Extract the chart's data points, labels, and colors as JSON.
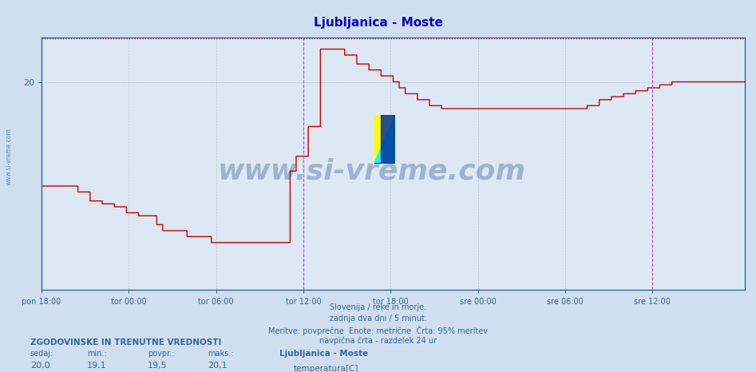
{
  "title": "Ljubljanica - Moste",
  "title_color": "#0000cc",
  "background_color": "#d0dff0",
  "plot_bg_color": "#dce8f4",
  "line_color": "#cc0000",
  "line_width": 1.0,
  "y_min": 13.0,
  "y_max": 21.5,
  "yticks": [
    20
  ],
  "xtick_labels": [
    "pon 18:00",
    "tor 00:00",
    "tor 06:00",
    "tor 12:00",
    "tor 18:00",
    "sre 00:00",
    "sre 06:00",
    "sre 12:00"
  ],
  "xtick_positions": [
    0,
    72,
    144,
    216,
    288,
    360,
    432,
    504
  ],
  "total_points": 577,
  "vertical_lines_magenta": [
    216,
    504
  ],
  "vertical_line_color": "#cc44cc",
  "grid_color": "#aabbcc",
  "text_color": "#336699",
  "footer_lines": [
    "Slovenija / reke in morje.",
    "zadnja dva dni / 5 minut.",
    "Meritve: povprečne  Enote: metrične  Črta: 95% meritev",
    "navpična črta - razdelek 24 ur"
  ],
  "stats_label": "ZGODOVINSKE IN TRENUTNE VREDNOSTI",
  "stats_cols": [
    "sedaj:",
    "min.:",
    "povpr.:",
    "maks.:"
  ],
  "stats_vals": [
    "20,0",
    "19,1",
    "19,5",
    "20,1"
  ],
  "legend_name": "Ljubljanica - Moste",
  "legend_param": "temperatura[C]",
  "legend_color": "#cc0000",
  "watermark_text": "www.si-vreme.com",
  "watermark_color": "#1a3a6b",
  "watermark_alpha": 0.3,
  "sidebar_text": "www.si-vreme.com",
  "sidebar_color": "#336699",
  "temperature_data": [
    16.5,
    16.5,
    16.5,
    16.5,
    16.5,
    16.5,
    16.5,
    16.5,
    16.5,
    16.5,
    16.5,
    16.5,
    16.5,
    16.5,
    16.5,
    16.5,
    16.5,
    16.5,
    16.5,
    16.5,
    16.5,
    16.5,
    16.5,
    16.5,
    16.5,
    16.5,
    16.5,
    16.5,
    16.5,
    16.5,
    16.3,
    16.3,
    16.3,
    16.3,
    16.3,
    16.3,
    16.3,
    16.3,
    16.3,
    16.3,
    16.0,
    16.0,
    16.0,
    16.0,
    16.0,
    16.0,
    16.0,
    16.0,
    16.0,
    16.0,
    15.9,
    15.9,
    15.9,
    15.9,
    15.9,
    15.9,
    15.9,
    15.9,
    15.9,
    15.9,
    15.8,
    15.8,
    15.8,
    15.8,
    15.8,
    15.8,
    15.8,
    15.8,
    15.8,
    15.8,
    15.6,
    15.6,
    15.6,
    15.6,
    15.6,
    15.6,
    15.6,
    15.6,
    15.6,
    15.6,
    15.5,
    15.5,
    15.5,
    15.5,
    15.5,
    15.5,
    15.5,
    15.5,
    15.5,
    15.5,
    15.5,
    15.5,
    15.5,
    15.5,
    15.5,
    15.2,
    15.2,
    15.2,
    15.2,
    15.2,
    15.0,
    15.0,
    15.0,
    15.0,
    15.0,
    15.0,
    15.0,
    15.0,
    15.0,
    15.0,
    15.0,
    15.0,
    15.0,
    15.0,
    15.0,
    15.0,
    15.0,
    15.0,
    15.0,
    15.0,
    14.8,
    14.8,
    14.8,
    14.8,
    14.8,
    14.8,
    14.8,
    14.8,
    14.8,
    14.8,
    14.8,
    14.8,
    14.8,
    14.8,
    14.8,
    14.8,
    14.8,
    14.8,
    14.8,
    14.8,
    14.6,
    14.6,
    14.6,
    14.6,
    14.6,
    14.6,
    14.6,
    14.6,
    14.6,
    14.6,
    14.6,
    14.6,
    14.6,
    14.6,
    14.6,
    14.6,
    14.6,
    14.6,
    14.6,
    14.6,
    14.6,
    14.6,
    14.6,
    14.6,
    14.6,
    14.6,
    14.6,
    14.6,
    14.6,
    14.6,
    14.6,
    14.6,
    14.6,
    14.6,
    14.6,
    14.6,
    14.6,
    14.6,
    14.6,
    14.6,
    14.6,
    14.6,
    14.6,
    14.6,
    14.6,
    14.6,
    14.6,
    14.6,
    14.6,
    14.6,
    14.6,
    14.6,
    14.6,
    14.6,
    14.6,
    14.6,
    14.6,
    14.6,
    14.6,
    14.6,
    14.6,
    14.6,
    14.6,
    14.6,
    14.6,
    17.0,
    17.0,
    17.0,
    17.0,
    17.0,
    17.5,
    17.5,
    17.5,
    17.5,
    17.5,
    17.5,
    17.5,
    17.5,
    17.5,
    17.5,
    18.5,
    18.5,
    18.5,
    18.5,
    18.5,
    18.5,
    18.5,
    18.5,
    18.5,
    18.5,
    21.1,
    21.1,
    21.1,
    21.1,
    21.1,
    21.1,
    21.1,
    21.1,
    21.1,
    21.1,
    21.1,
    21.1,
    21.1,
    21.1,
    21.1,
    21.1,
    21.1,
    21.1,
    21.1,
    21.1,
    20.9,
    20.9,
    20.9,
    20.9,
    20.9,
    20.9,
    20.9,
    20.9,
    20.9,
    20.9,
    20.6,
    20.6,
    20.6,
    20.6,
    20.6,
    20.6,
    20.6,
    20.6,
    20.6,
    20.6,
    20.4,
    20.4,
    20.4,
    20.4,
    20.4,
    20.4,
    20.4,
    20.4,
    20.4,
    20.4,
    20.2,
    20.2,
    20.2,
    20.2,
    20.2,
    20.2,
    20.2,
    20.2,
    20.2,
    20.2,
    20.0,
    20.0,
    20.0,
    20.0,
    20.0,
    19.8,
    19.8,
    19.8,
    19.8,
    19.8,
    19.6,
    19.6,
    19.6,
    19.6,
    19.6,
    19.6,
    19.6,
    19.6,
    19.6,
    19.6,
    19.4,
    19.4,
    19.4,
    19.4,
    19.4,
    19.4,
    19.4,
    19.4,
    19.4,
    19.4,
    19.2,
    19.2,
    19.2,
    19.2,
    19.2,
    19.2,
    19.2,
    19.2,
    19.2,
    19.2,
    19.1,
    19.1,
    19.1,
    19.1,
    19.1,
    19.1,
    19.1,
    19.1,
    19.1,
    19.1,
    19.1,
    19.1,
    19.1,
    19.1,
    19.1,
    19.1,
    19.1,
    19.1,
    19.1,
    19.1,
    19.1,
    19.1,
    19.1,
    19.1,
    19.1,
    19.1,
    19.1,
    19.1,
    19.1,
    19.1,
    19.1,
    19.1,
    19.1,
    19.1,
    19.1,
    19.1,
    19.1,
    19.1,
    19.1,
    19.1,
    19.1,
    19.1,
    19.1,
    19.1,
    19.1,
    19.1,
    19.1,
    19.1,
    19.1,
    19.1,
    19.1,
    19.1,
    19.1,
    19.1,
    19.1,
    19.1,
    19.1,
    19.1,
    19.1,
    19.1,
    19.1,
    19.1,
    19.1,
    19.1,
    19.1,
    19.1,
    19.1,
    19.1,
    19.1,
    19.1,
    19.1,
    19.1,
    19.1,
    19.1,
    19.1,
    19.1,
    19.1,
    19.1,
    19.1,
    19.1,
    19.1,
    19.1,
    19.1,
    19.1,
    19.1,
    19.1,
    19.1,
    19.1,
    19.1,
    19.1,
    19.1,
    19.1,
    19.1,
    19.1,
    19.1,
    19.1,
    19.1,
    19.1,
    19.1,
    19.1,
    19.1,
    19.1,
    19.1,
    19.1,
    19.1,
    19.1,
    19.1,
    19.1,
    19.1,
    19.1,
    19.1,
    19.1,
    19.1,
    19.1,
    19.1,
    19.1,
    19.1,
    19.1,
    19.1,
    19.1,
    19.2,
    19.2,
    19.2,
    19.2,
    19.2,
    19.2,
    19.2,
    19.2,
    19.2,
    19.2,
    19.4,
    19.4,
    19.4,
    19.4,
    19.4,
    19.4,
    19.4,
    19.4,
    19.4,
    19.4,
    19.5,
    19.5,
    19.5,
    19.5,
    19.5,
    19.5,
    19.5,
    19.5,
    19.5,
    19.5,
    19.6,
    19.6,
    19.6,
    19.6,
    19.6,
    19.6,
    19.6,
    19.6,
    19.6,
    19.6,
    19.7,
    19.7,
    19.7,
    19.7,
    19.7,
    19.7,
    19.7,
    19.7,
    19.7,
    19.7,
    19.8,
    19.8,
    19.8,
    19.8,
    19.8,
    19.8,
    19.8,
    19.8,
    19.8,
    19.8,
    19.9,
    19.9,
    19.9,
    19.9,
    19.9,
    19.9,
    19.9,
    19.9,
    19.9,
    19.9,
    20.0,
    20.0,
    20.0,
    20.0,
    20.0,
    20.0,
    20.0,
    20.0,
    20.0,
    20.0,
    20.0,
    20.0,
    20.0,
    20.0,
    20.0,
    20.0,
    20.0,
    20.0,
    20.0,
    20.0,
    20.0,
    20.0,
    20.0,
    20.0,
    20.0,
    20.0,
    20.0,
    20.0,
    20.0,
    20.0,
    20.0,
    20.0,
    20.0,
    20.0,
    20.0,
    20.0,
    20.0,
    20.0,
    20.0,
    20.0,
    20.0,
    20.0,
    20.0,
    20.0,
    20.0,
    20.0,
    20.0,
    20.0,
    20.0,
    20.0,
    20.0,
    20.0,
    20.0,
    20.0,
    20.0,
    20.0,
    20.0,
    20.0,
    20.0,
    20.0,
    20.0
  ]
}
